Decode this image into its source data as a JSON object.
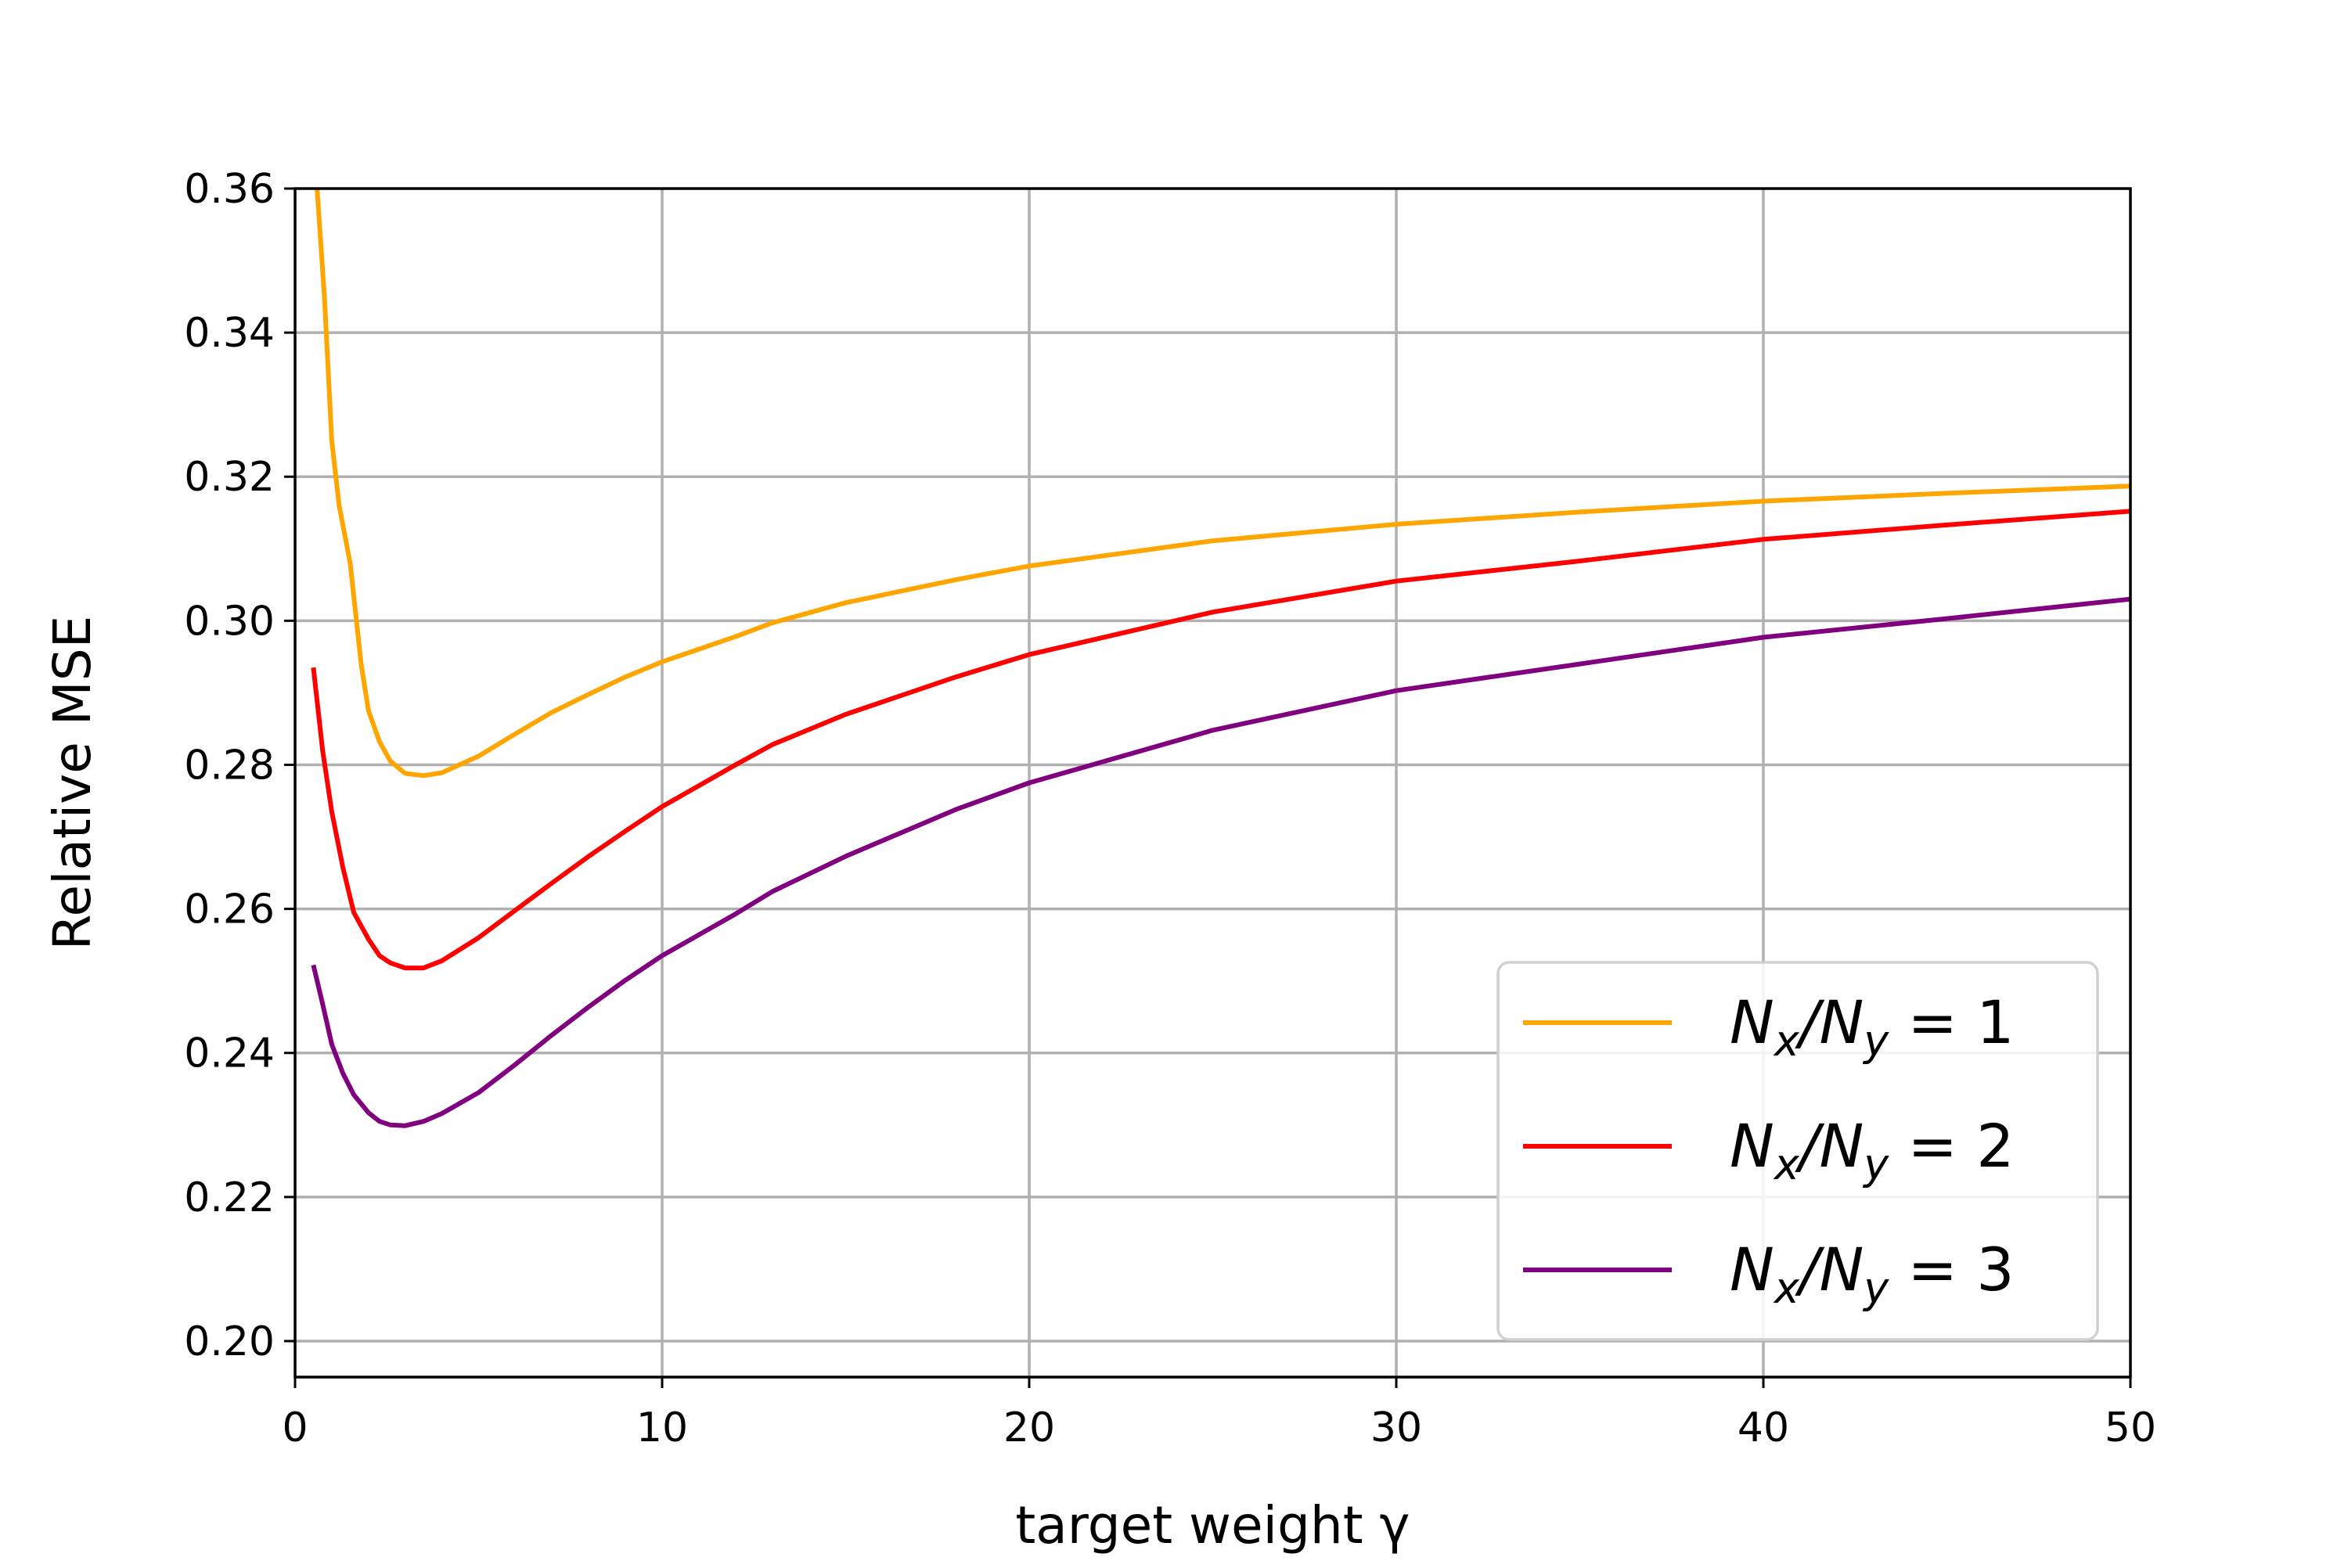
{
  "chart_data": {
    "type": "line",
    "title": "",
    "xlabel": "target weight γ",
    "ylabel": "Relative MSE",
    "xlim": [
      0,
      50
    ],
    "ylim": [
      0.195,
      0.36
    ],
    "xticks": [
      0,
      10,
      20,
      30,
      40,
      50
    ],
    "xtick_labels": [
      "0",
      "10",
      "20",
      "30",
      "40",
      "50"
    ],
    "yticks": [
      0.2,
      0.22,
      0.24,
      0.26,
      0.28,
      0.3,
      0.32,
      0.34,
      0.36
    ],
    "ytick_labels": [
      "0.20",
      "0.22",
      "0.24",
      "0.26",
      "0.28",
      "0.30",
      "0.32",
      "0.34",
      "0.36"
    ],
    "grid": true,
    "legend_position": "lower-right",
    "series": [
      {
        "name": "Nx/Ny = 1",
        "legend": {
          "base": "N",
          "sub1": "x",
          "sep": "/",
          "sub2": "y",
          "rest": " = 1"
        },
        "color": "#FFA500",
        "x": [
          0.6,
          0.8,
          1.0,
          1.2,
          1.5,
          1.8,
          2.0,
          2.3,
          2.6,
          3.0,
          3.5,
          4.0,
          5.0,
          6.0,
          7.0,
          8.0,
          9.0,
          10,
          12,
          13,
          15,
          18,
          20,
          25,
          30,
          35,
          40,
          45,
          50
        ],
        "y": [
          0.36,
          0.345,
          0.325,
          0.316,
          0.308,
          0.294,
          0.2875,
          0.2832,
          0.2805,
          0.2788,
          0.2785,
          0.2789,
          0.2812,
          0.2843,
          0.2873,
          0.2898,
          0.2922,
          0.2943,
          0.2978,
          0.2997,
          0.3025,
          0.3057,
          0.3076,
          0.3111,
          0.3134,
          0.3151,
          0.3166,
          0.3177,
          0.3187
        ]
      },
      {
        "name": "Nx/Ny = 2",
        "legend": {
          "base": "N",
          "sub1": "x",
          "sep": "/",
          "sub2": "y",
          "rest": " = 2"
        },
        "color": "#FF0000",
        "x": [
          0.5,
          0.75,
          1.0,
          1.3,
          1.6,
          2.0,
          2.3,
          2.6,
          3.0,
          3.5,
          4.0,
          5.0,
          6.0,
          7.0,
          8.0,
          9.0,
          10,
          12,
          13,
          15,
          18,
          20,
          25,
          30,
          35,
          40,
          45,
          50
        ],
        "y": [
          0.2935,
          0.282,
          0.2735,
          0.2658,
          0.2595,
          0.2558,
          0.2535,
          0.2525,
          0.2518,
          0.2518,
          0.2528,
          0.256,
          0.2598,
          0.2636,
          0.2673,
          0.2708,
          0.2742,
          0.28,
          0.2828,
          0.287,
          0.2922,
          0.2953,
          0.3012,
          0.3055,
          0.3083,
          0.3113,
          0.3133,
          0.3152
        ]
      },
      {
        "name": "Nx/Ny = 3",
        "legend": {
          "base": "N",
          "sub1": "x",
          "sep": "/",
          "sub2": "y",
          "rest": " = 3"
        },
        "color": "#800080",
        "x": [
          0.5,
          0.75,
          1.0,
          1.3,
          1.6,
          2.0,
          2.3,
          2.6,
          3.0,
          3.5,
          4.0,
          5.0,
          6.0,
          7.0,
          8.0,
          9.0,
          10,
          12,
          13,
          15,
          18,
          20,
          25,
          30,
          35,
          40,
          45,
          50
        ],
        "y": [
          0.2522,
          0.2468,
          0.2412,
          0.2372,
          0.2342,
          0.2317,
          0.2305,
          0.23,
          0.2299,
          0.2305,
          0.2316,
          0.2345,
          0.2384,
          0.2425,
          0.2464,
          0.2501,
          0.2535,
          0.2593,
          0.2624,
          0.2673,
          0.2738,
          0.2775,
          0.2848,
          0.2903,
          0.294,
          0.2977,
          0.3003,
          0.303
        ]
      }
    ]
  }
}
